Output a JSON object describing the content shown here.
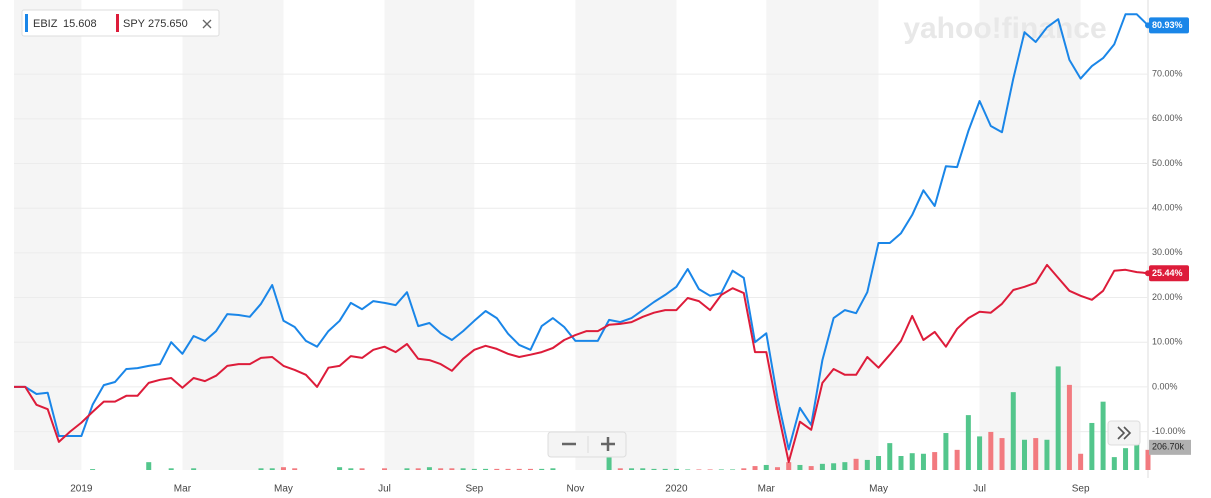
{
  "chart_data": {
    "type": "line",
    "watermark": "yahoo!finance",
    "categories": [
      null,
      null,
      null,
      null,
      null,
      null,
      "2019",
      null,
      null,
      null,
      null,
      null,
      null,
      null,
      null,
      "Mar",
      null,
      null,
      null,
      null,
      null,
      null,
      null,
      null,
      "May",
      null,
      null,
      null,
      null,
      null,
      null,
      null,
      null,
      "Jul",
      null,
      null,
      null,
      null,
      null,
      null,
      null,
      "Sep",
      null,
      null,
      null,
      null,
      null,
      null,
      null,
      null,
      "Nov",
      null,
      null,
      null,
      null,
      null,
      null,
      null,
      null,
      "2020",
      null,
      null,
      null,
      null,
      null,
      null,
      null,
      "Mar",
      null,
      null,
      null,
      null,
      null,
      null,
      null,
      null,
      null,
      "May",
      null,
      null,
      null,
      null,
      null,
      null,
      null,
      null,
      "Jul",
      null,
      null,
      null,
      null,
      null,
      null,
      null,
      null,
      "Sep",
      null,
      null,
      null,
      null,
      null,
      null
    ],
    "ylim": [
      -18.6,
      86.6
    ],
    "yticks": [
      {
        "value": -10,
        "label": "-10.00%"
      },
      {
        "value": 0,
        "label": "0.00%"
      },
      {
        "value": 10,
        "label": "10.00%"
      },
      {
        "value": 20,
        "label": "20.00%"
      },
      {
        "value": 30,
        "label": "30.00%"
      },
      {
        "value": 40,
        "label": "40.00%"
      },
      {
        "value": 50,
        "label": "50.00%"
      },
      {
        "value": 60,
        "label": "60.00%"
      },
      {
        "value": 70,
        "label": "70.00%"
      }
    ],
    "grid": true,
    "series": [
      {
        "name": "EBIZ",
        "price": 15.608,
        "color": "#1a86e8",
        "end_label": {
          "value": 80.93,
          "label": "80.93%"
        },
        "values": [
          0,
          0,
          -1.6,
          -1.3,
          -11,
          -11,
          -11,
          -4,
          0.4,
          1.1,
          4,
          4.2,
          4.7,
          5.1,
          10,
          7.4,
          11.4,
          10.3,
          12.5,
          16.3,
          16.1,
          15.7,
          18.6,
          22.8,
          14.8,
          13.4,
          10.3,
          9,
          12.5,
          14.8,
          18.8,
          17.4,
          19.2,
          18.8,
          18.3,
          21.2,
          13.6,
          14.3,
          12,
          10.5,
          12.5,
          14.8,
          17,
          15.4,
          11.9,
          9.4,
          8.3,
          13.6,
          15.4,
          13.4,
          10.3,
          10.3,
          10.3,
          15,
          14.5,
          15.4,
          17.2,
          19,
          20.6,
          22.4,
          26.4,
          21.9,
          20.4,
          21,
          26,
          24.4,
          10,
          12,
          -2.5,
          -14,
          -4.7,
          -8.5,
          6,
          15.4,
          17.2,
          16.5,
          21.2,
          32.2,
          32.2,
          34.4,
          38.5,
          44,
          40.5,
          49.4,
          49.2,
          57.3,
          64,
          58.4,
          57,
          69,
          79.4,
          77.2,
          80.5,
          82.3,
          73.2,
          69,
          71.8,
          73.6,
          76.7,
          83.4,
          83.4,
          80.93
        ]
      },
      {
        "name": "SPY",
        "price": {
          "value": 275.65,
          "label": "275.650"
        },
        "color": "#dd1c3a",
        "end_label": {
          "value": 25.44,
          "label": "25.44%"
        },
        "values": [
          0,
          0,
          -4,
          -5,
          -12.3,
          -10,
          -8,
          -5.6,
          -3.3,
          -3.3,
          -2,
          -2,
          0.9,
          1.6,
          2,
          -0.2,
          2,
          1.3,
          2.5,
          4.7,
          5.1,
          5.1,
          6.5,
          6.7,
          4.7,
          3.8,
          2.7,
          0,
          4.3,
          4.7,
          6.9,
          6.5,
          8.3,
          9,
          7.8,
          9.6,
          6.3,
          6,
          5.1,
          3.6,
          6.3,
          8.3,
          9.2,
          8.5,
          7.4,
          6.7,
          7.2,
          7.8,
          8.7,
          10.5,
          11.6,
          12.5,
          12.5,
          13.9,
          14.1,
          14.5,
          15.7,
          16.6,
          17.2,
          17.2,
          19.9,
          19.2,
          17.2,
          20.6,
          22.1,
          21,
          7.8,
          7.8,
          -5.1,
          -16.8,
          -7.8,
          -9.6,
          0.9,
          4,
          2.7,
          2.7,
          6.7,
          4.3,
          7.2,
          10.3,
          15.9,
          10.5,
          12.3,
          9,
          13,
          15.4,
          16.8,
          16.6,
          18.6,
          21.7,
          22.4,
          23.3,
          27.3,
          24.4,
          21.5,
          20.4,
          19.5,
          21.5,
          26,
          26.2,
          25.7,
          25.44
        ]
      }
    ],
    "volume": {
      "up_color": "#53c68c",
      "down_color": "#f27a7f",
      "ylim": [
        0,
        1000
      ],
      "yticks": [
        {
          "value": 206.7,
          "label": "206.70k"
        }
      ],
      "values": [
        0,
        0,
        0,
        0,
        0,
        0,
        0,
        8,
        0,
        0,
        0,
        0,
        70,
        0,
        15,
        0,
        15,
        0,
        0,
        0,
        0,
        0,
        15,
        15,
        25,
        15,
        0,
        0,
        0,
        25,
        15,
        15,
        0,
        15,
        0,
        15,
        15,
        25,
        15,
        15,
        15,
        10,
        10,
        10,
        10,
        10,
        10,
        10,
        15,
        0,
        0,
        0,
        0,
        134,
        15,
        15,
        15,
        10,
        10,
        10,
        5,
        5,
        5,
        5,
        5,
        15,
        35,
        45,
        25,
        70,
        45,
        35,
        55,
        60,
        70,
        100,
        90,
        125,
        240,
        125,
        150,
        145,
        160,
        330,
        180,
        490,
        300,
        340,
        285,
        695,
        270,
        285,
        270,
        925,
        760,
        145,
        420,
        610,
        115,
        195,
        250,
        180
      ]
    }
  }
}
